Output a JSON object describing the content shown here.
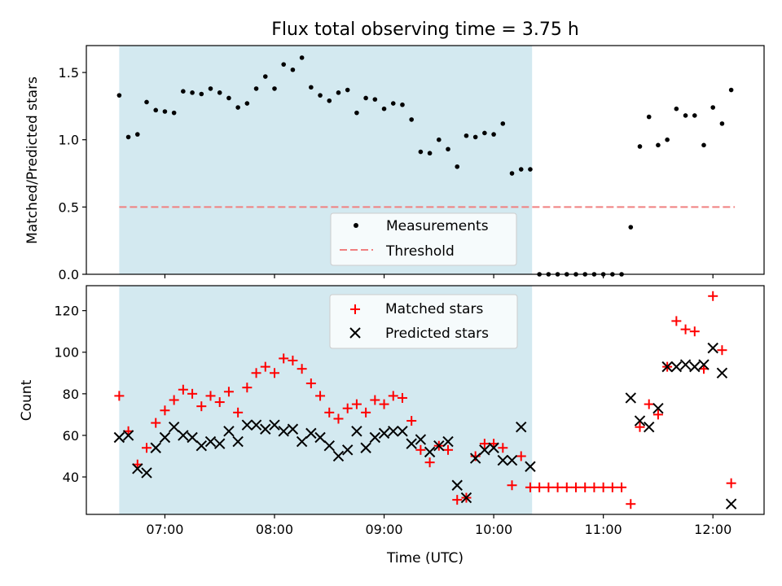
{
  "chart_data": [
    {
      "type": "scatter",
      "title": "Flux total observing time = 3.75 h",
      "xlabel": "",
      "ylabel": "Matched/Predicted stars",
      "ylim": [
        0,
        1.7
      ],
      "yticks": [
        0.0,
        0.5,
        1.0,
        1.5
      ],
      "ytick_labels": [
        "0.0",
        "0.5",
        "1.0",
        "1.5"
      ],
      "xlim": [
        "06:17",
        "12:28"
      ],
      "xticks": [
        "07:00",
        "08:00",
        "09:00",
        "10:00",
        "11:00",
        "12:00"
      ],
      "shaded_region": [
        "06:35",
        "10:21"
      ],
      "shaded_color": "#d3e9f0",
      "threshold": {
        "y": 0.5,
        "x_range": [
          "06:35",
          "12:12"
        ],
        "color": "#f08080"
      },
      "legend": {
        "position": "lower-center",
        "entries": [
          "Measurements",
          "Threshold"
        ]
      },
      "series": [
        {
          "name": "Measurements",
          "color": "#000000",
          "x": [
            "06:35",
            "06:40",
            "06:45",
            "06:50",
            "06:55",
            "07:00",
            "07:05",
            "07:10",
            "07:15",
            "07:20",
            "07:25",
            "07:30",
            "07:35",
            "07:40",
            "07:45",
            "07:50",
            "07:55",
            "08:00",
            "08:05",
            "08:10",
            "08:15",
            "08:20",
            "08:25",
            "08:30",
            "08:35",
            "08:40",
            "08:45",
            "08:50",
            "08:55",
            "09:00",
            "09:05",
            "09:10",
            "09:15",
            "09:20",
            "09:25",
            "09:30",
            "09:35",
            "09:40",
            "09:45",
            "09:50",
            "09:55",
            "10:00",
            "10:05",
            "10:10",
            "10:15",
            "10:20",
            "10:25",
            "10:30",
            "10:35",
            "10:40",
            "10:45",
            "10:50",
            "10:55",
            "11:00",
            "11:05",
            "11:10",
            "11:15",
            "11:20",
            "11:25",
            "11:30",
            "11:35",
            "11:40",
            "11:45",
            "11:50",
            "11:55",
            "12:00",
            "12:05",
            "12:10"
          ],
          "y": [
            1.33,
            1.02,
            1.04,
            1.28,
            1.22,
            1.21,
            1.2,
            1.36,
            1.35,
            1.34,
            1.38,
            1.35,
            1.31,
            1.24,
            1.27,
            1.38,
            1.47,
            1.38,
            1.56,
            1.52,
            1.61,
            1.39,
            1.33,
            1.29,
            1.35,
            1.37,
            1.2,
            1.31,
            1.3,
            1.23,
            1.27,
            1.26,
            1.15,
            0.91,
            0.9,
            1.0,
            0.93,
            0.8,
            1.03,
            1.02,
            1.05,
            1.04,
            1.12,
            0.75,
            0.78,
            0.78,
            0.0,
            0.0,
            0.0,
            0.0,
            0.0,
            0.0,
            0.0,
            0.0,
            0.0,
            0.0,
            0.35,
            0.95,
            1.17,
            0.96,
            1.0,
            1.23,
            1.18,
            1.18,
            0.96,
            1.24,
            1.12,
            1.37
          ]
        }
      ]
    },
    {
      "type": "scatter",
      "title": "",
      "xlabel": "Time (UTC)",
      "ylabel": "Count",
      "ylim": [
        22,
        132
      ],
      "yticks": [
        40,
        60,
        80,
        100,
        120
      ],
      "ytick_labels": [
        "40",
        "60",
        "80",
        "100",
        "120"
      ],
      "xlim": [
        "06:17",
        "12:28"
      ],
      "xticks": [
        "07:00",
        "08:00",
        "09:00",
        "10:00",
        "11:00",
        "12:00"
      ],
      "xtick_labels": [
        "07:00",
        "08:00",
        "09:00",
        "10:00",
        "11:00",
        "12:00"
      ],
      "shaded_region": [
        "06:35",
        "10:21"
      ],
      "shaded_color": "#d3e9f0",
      "legend": {
        "position": "top-center",
        "entries": [
          "Matched stars",
          "Predicted stars"
        ]
      },
      "series": [
        {
          "name": "Matched stars",
          "marker": "plus",
          "color": "#ff0000",
          "x": [
            "06:35",
            "06:40",
            "06:45",
            "06:50",
            "06:55",
            "07:00",
            "07:05",
            "07:10",
            "07:15",
            "07:20",
            "07:25",
            "07:30",
            "07:35",
            "07:40",
            "07:45",
            "07:50",
            "07:55",
            "08:00",
            "08:05",
            "08:10",
            "08:15",
            "08:20",
            "08:25",
            "08:30",
            "08:35",
            "08:40",
            "08:45",
            "08:50",
            "08:55",
            "09:00",
            "09:05",
            "09:10",
            "09:15",
            "09:20",
            "09:25",
            "09:30",
            "09:35",
            "09:40",
            "09:45",
            "09:50",
            "09:55",
            "10:00",
            "10:05",
            "10:10",
            "10:15",
            "10:20",
            "10:25",
            "10:30",
            "10:35",
            "10:40",
            "10:45",
            "10:50",
            "10:55",
            "11:00",
            "11:05",
            "11:10",
            "11:15",
            "11:20",
            "11:25",
            "11:30",
            "11:35",
            "11:40",
            "11:45",
            "11:50",
            "11:55",
            "12:00",
            "12:05",
            "12:10"
          ],
          "y": [
            79,
            62,
            46,
            54,
            66,
            72,
            77,
            82,
            80,
            74,
            79,
            76,
            81,
            71,
            83,
            90,
            93,
            90,
            97,
            96,
            92,
            85,
            79,
            71,
            68,
            73,
            75,
            71,
            77,
            75,
            79,
            78,
            67,
            53,
            47,
            55,
            53,
            29,
            30,
            50,
            56,
            56,
            54,
            36,
            50,
            35,
            35,
            35,
            35,
            35,
            35,
            35,
            35,
            35,
            35,
            35,
            27,
            64,
            75,
            70,
            93,
            115,
            111,
            110,
            92,
            127,
            101,
            37
          ]
        },
        {
          "name": "Predicted stars",
          "marker": "x",
          "color": "#000000",
          "x": [
            "06:35",
            "06:40",
            "06:45",
            "06:50",
            "06:55",
            "07:00",
            "07:05",
            "07:10",
            "07:15",
            "07:20",
            "07:25",
            "07:30",
            "07:35",
            "07:40",
            "07:45",
            "07:50",
            "07:55",
            "08:00",
            "08:05",
            "08:10",
            "08:15",
            "08:20",
            "08:25",
            "08:30",
            "08:35",
            "08:40",
            "08:45",
            "08:50",
            "08:55",
            "09:00",
            "09:05",
            "09:10",
            "09:15",
            "09:20",
            "09:25",
            "09:30",
            "09:35",
            "09:40",
            "09:45",
            "09:50",
            "09:55",
            "10:00",
            "10:05",
            "10:10",
            "10:15",
            "10:20",
            "11:15",
            "11:20",
            "11:25",
            "11:30",
            "11:35",
            "11:40",
            "11:45",
            "11:50",
            "11:55",
            "12:00",
            "12:05",
            "12:10"
          ],
          "y": [
            59,
            60,
            44,
            42,
            54,
            59,
            64,
            60,
            59,
            55,
            57,
            56,
            62,
            57,
            65,
            65,
            63,
            65,
            62,
            63,
            57,
            61,
            59,
            55,
            50,
            53,
            62,
            54,
            59,
            61,
            62,
            62,
            56,
            58,
            52,
            55,
            57,
            36,
            30,
            49,
            53,
            54,
            48,
            48,
            64,
            45,
            78,
            67,
            64,
            73,
            93,
            93,
            94,
            93,
            94,
            102,
            90,
            27
          ]
        }
      ]
    }
  ]
}
